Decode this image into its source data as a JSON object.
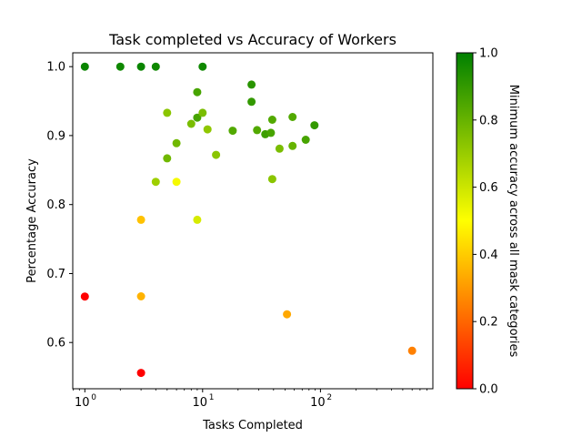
{
  "chart_data": {
    "type": "scatter",
    "title": "Task completed vs Accuracy of Workers",
    "xlabel": "Tasks Completed",
    "ylabel": "Percentage Accuracy",
    "xscale": "log",
    "xlim": [
      0.79,
      900
    ],
    "ylim": [
      0.533,
      1.02
    ],
    "xticks": [
      {
        "base": "10",
        "exp": "0",
        "value": 1
      },
      {
        "base": "10",
        "exp": "1",
        "value": 10
      },
      {
        "base": "10",
        "exp": "2",
        "value": 100
      }
    ],
    "yticks": [
      "0.6",
      "0.7",
      "0.8",
      "0.9",
      "1.0"
    ],
    "grid": false,
    "colorbar": {
      "label": "Minimum accuracy across all mask categories",
      "range": [
        0.0,
        1.0
      ],
      "ticks": [
        "0.0",
        "0.2",
        "0.4",
        "0.6",
        "0.8",
        "1.0"
      ],
      "colors": [
        "#ff0000",
        "#ffff00",
        "#008000"
      ]
    },
    "points": [
      {
        "x": 1,
        "y": 1.0,
        "c": 0.98
      },
      {
        "x": 1,
        "y": 0.6667,
        "c": 0.0
      },
      {
        "x": 2,
        "y": 1.0,
        "c": 0.97
      },
      {
        "x": 3,
        "y": 1.0,
        "c": 0.98
      },
      {
        "x": 3,
        "y": 0.778,
        "c": 0.38
      },
      {
        "x": 3,
        "y": 0.667,
        "c": 0.35
      },
      {
        "x": 3,
        "y": 0.556,
        "c": 0.0
      },
      {
        "x": 4,
        "y": 1.0,
        "c": 0.97
      },
      {
        "x": 4,
        "y": 0.833,
        "c": 0.69
      },
      {
        "x": 5,
        "y": 0.933,
        "c": 0.73
      },
      {
        "x": 5,
        "y": 0.867,
        "c": 0.78
      },
      {
        "x": 6,
        "y": 0.889,
        "c": 0.78
      },
      {
        "x": 6,
        "y": 0.833,
        "c": 0.52
      },
      {
        "x": 8,
        "y": 0.917,
        "c": 0.76
      },
      {
        "x": 9,
        "y": 0.963,
        "c": 0.86
      },
      {
        "x": 9,
        "y": 0.926,
        "c": 0.86
      },
      {
        "x": 9,
        "y": 0.778,
        "c": 0.58
      },
      {
        "x": 10,
        "y": 1.0,
        "c": 0.97
      },
      {
        "x": 10,
        "y": 0.933,
        "c": 0.76
      },
      {
        "x": 11,
        "y": 0.909,
        "c": 0.72
      },
      {
        "x": 13,
        "y": 0.872,
        "c": 0.73
      },
      {
        "x": 18,
        "y": 0.907,
        "c": 0.84
      },
      {
        "x": 26,
        "y": 0.974,
        "c": 0.92
      },
      {
        "x": 26,
        "y": 0.949,
        "c": 0.9
      },
      {
        "x": 29,
        "y": 0.908,
        "c": 0.84
      },
      {
        "x": 34,
        "y": 0.902,
        "c": 0.88
      },
      {
        "x": 38,
        "y": 0.904,
        "c": 0.86
      },
      {
        "x": 39,
        "y": 0.923,
        "c": 0.84
      },
      {
        "x": 39,
        "y": 0.837,
        "c": 0.73
      },
      {
        "x": 45,
        "y": 0.881,
        "c": 0.76
      },
      {
        "x": 52,
        "y": 0.641,
        "c": 0.33
      },
      {
        "x": 58,
        "y": 0.927,
        "c": 0.84
      },
      {
        "x": 58,
        "y": 0.885,
        "c": 0.8
      },
      {
        "x": 75,
        "y": 0.894,
        "c": 0.86
      },
      {
        "x": 89,
        "y": 0.915,
        "c": 0.9
      },
      {
        "x": 600,
        "y": 0.588,
        "c": 0.25
      }
    ]
  }
}
